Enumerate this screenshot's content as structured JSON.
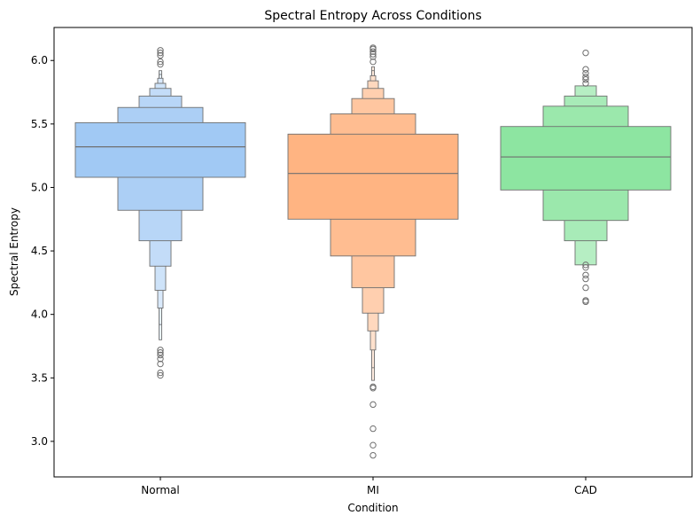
{
  "chart_data": {
    "type": "boxen",
    "title": "Spectral Entropy Across Conditions",
    "xlabel": "Condition",
    "ylabel": "Spectral Entropy",
    "ylim": [
      2.72,
      6.26
    ],
    "yticks": [
      3.0,
      3.5,
      4.0,
      4.5,
      5.0,
      5.5,
      6.0
    ],
    "ytick_labels": [
      "3.0",
      "3.5",
      "4.0",
      "4.5",
      "5.0",
      "5.5",
      "6.0"
    ],
    "categories": [
      "Normal",
      "MI",
      "CAD"
    ],
    "grid": false,
    "series": [
      {
        "category": "Normal",
        "color": "#a1c9f4",
        "median": 5.32,
        "boxes": [
          [
            5.08,
            5.51
          ],
          [
            4.82,
            5.63
          ],
          [
            4.58,
            5.72
          ],
          [
            4.38,
            5.78
          ],
          [
            4.19,
            5.82
          ],
          [
            4.05,
            5.86
          ],
          [
            3.92,
            5.89
          ],
          [
            3.8,
            5.92
          ]
        ],
        "outliers": [
          6.08,
          6.06,
          6.04,
          5.99,
          5.97,
          3.72,
          3.7,
          3.68,
          3.65,
          3.61,
          3.54,
          3.52
        ]
      },
      {
        "category": "MI",
        "color": "#ffb482",
        "median": 5.11,
        "boxes": [
          [
            4.75,
            5.42
          ],
          [
            4.46,
            5.58
          ],
          [
            4.21,
            5.7
          ],
          [
            4.01,
            5.78
          ],
          [
            3.87,
            5.84
          ],
          [
            3.72,
            5.88
          ],
          [
            3.58,
            5.92
          ],
          [
            3.48,
            5.95
          ]
        ],
        "outliers": [
          6.1,
          6.09,
          6.07,
          6.05,
          6.03,
          5.99,
          3.43,
          3.42,
          3.29,
          3.1,
          2.97,
          2.89
        ]
      },
      {
        "category": "CAD",
        "color": "#8de5a1",
        "median": 5.24,
        "boxes": [
          [
            4.98,
            5.48
          ],
          [
            4.74,
            5.64
          ],
          [
            4.58,
            5.72
          ],
          [
            4.39,
            5.8
          ]
        ],
        "outliers": [
          6.06,
          5.93,
          5.9,
          5.87,
          5.85,
          5.82,
          4.39,
          4.37,
          4.31,
          4.28,
          4.21,
          4.11,
          4.1
        ]
      }
    ]
  }
}
